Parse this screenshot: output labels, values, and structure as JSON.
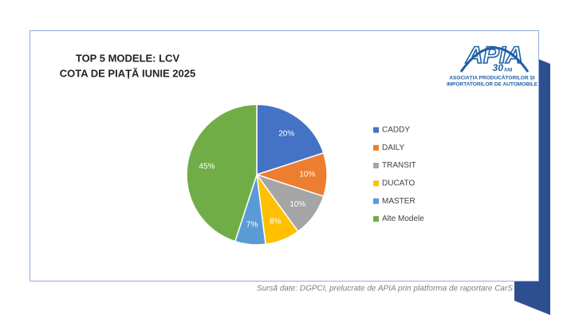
{
  "chart_data": {
    "type": "pie",
    "title": "TOP 5 MODELE: LCV",
    "subtitle": "COTA DE PIAȚĂ IUNIE 2025",
    "categories": [
      "CADDY",
      "DAILY",
      "TRANSIT",
      "DUCATO",
      "MASTER",
      "Alte Modele"
    ],
    "values": [
      20,
      10,
      10,
      8,
      7,
      45
    ],
    "value_labels": [
      "20%",
      "10%",
      "10%",
      "8%",
      "7%",
      "45%"
    ],
    "colors": [
      "#4472c4",
      "#ed7d31",
      "#a5a5a5",
      "#ffc000",
      "#5b9bd5",
      "#70ad47"
    ],
    "legend": "right",
    "source": "Sursă date: DGPCI, prelucrate de APIA prin platforma de raportare CarS"
  },
  "logo": {
    "name": "APIA",
    "badge": "30",
    "badge_suffix": "ANI",
    "lines": [
      "ASOCIAȚIA PRODUCĂTORILOR ȘI",
      "IMPORTATORILOR DE AUTOMOBILE"
    ]
  }
}
